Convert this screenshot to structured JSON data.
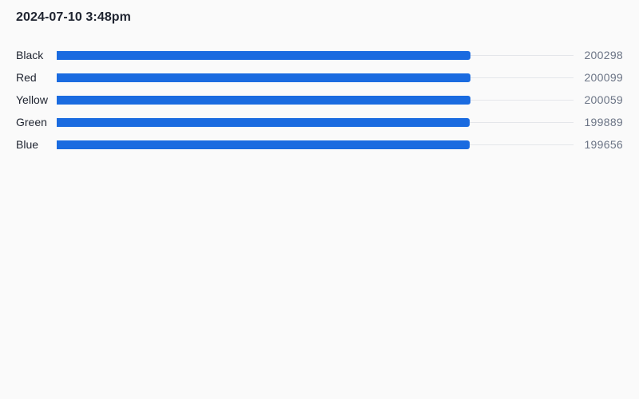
{
  "header": {
    "title": "2024-07-10 3:48pm"
  },
  "colors": {
    "bar": "#1a6be0",
    "track": "#e4e6ea",
    "background": "#fafafa"
  },
  "chart_data": {
    "type": "bar",
    "orientation": "horizontal",
    "title": "2024-07-10 3:48pm",
    "categories": [
      "Black",
      "Red",
      "Yellow",
      "Green",
      "Blue"
    ],
    "values": [
      200298,
      200099,
      200059,
      199889,
      199656
    ],
    "xlim": [
      0,
      250000
    ],
    "grid": false,
    "legend": "none"
  }
}
